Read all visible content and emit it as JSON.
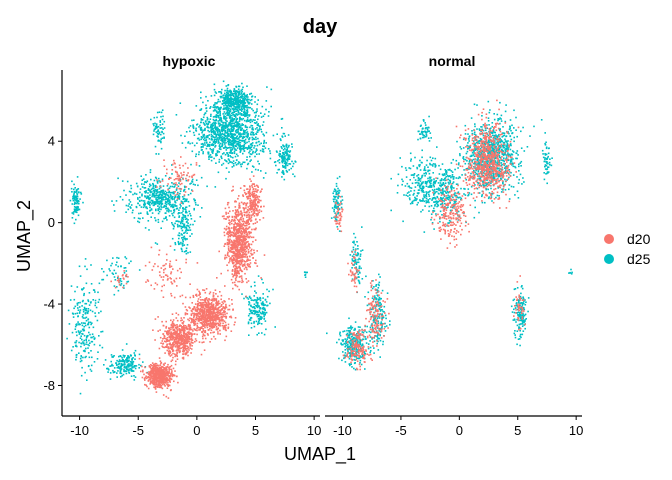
{
  "chart_data": {
    "type": "scatter",
    "title": "day",
    "xlabel": "UMAP_1",
    "ylabel": "UMAP_2",
    "xlim": [
      -11.5,
      10.5
    ],
    "ylim": [
      -9.5,
      7.5
    ],
    "x_ticks": [
      -10,
      -5,
      0,
      5,
      10
    ],
    "y_ticks": [
      -8,
      -4,
      0,
      4
    ],
    "x_tick_labels": [
      "-10",
      "-5",
      "0",
      "5",
      "10"
    ],
    "y_tick_labels": [
      "-8",
      "-4",
      "0",
      "4"
    ],
    "legend_position": "right",
    "legend": [
      {
        "label": "d20",
        "color": "#F8766D"
      },
      {
        "label": "d25",
        "color": "#00BFC4"
      }
    ],
    "panels": [
      {
        "label": "hypoxic",
        "clusters": [
          {
            "series": "d25",
            "x": 2.8,
            "y": 4.4,
            "sx": 2.6,
            "sy": 1.4,
            "n": 1100
          },
          {
            "series": "d25",
            "x": 3.2,
            "y": 6.0,
            "sx": 1.3,
            "sy": 0.6,
            "n": 400
          },
          {
            "series": "d25",
            "x": -3.0,
            "y": 1.2,
            "sx": 2.5,
            "sy": 1.0,
            "n": 500
          },
          {
            "series": "d25",
            "x": -1.2,
            "y": -0.3,
            "sx": 0.7,
            "sy": 1.1,
            "n": 120
          },
          {
            "series": "d25",
            "x": -3.2,
            "y": 4.5,
            "sx": 0.6,
            "sy": 0.8,
            "n": 60
          },
          {
            "series": "d25",
            "x": -10.3,
            "y": 1.0,
            "sx": 0.35,
            "sy": 0.8,
            "n": 90
          },
          {
            "series": "d25",
            "x": -9.5,
            "y": -5.0,
            "sx": 1.2,
            "sy": 2.0,
            "n": 220
          },
          {
            "series": "d25",
            "x": -6.8,
            "y": -2.5,
            "sx": 1.2,
            "sy": 0.9,
            "n": 50
          },
          {
            "series": "d25",
            "x": -6.2,
            "y": -7.0,
            "sx": 1.3,
            "sy": 0.5,
            "n": 180
          },
          {
            "series": "d25",
            "x": 5.2,
            "y": -4.2,
            "sx": 0.8,
            "sy": 0.9,
            "n": 170
          },
          {
            "series": "d25",
            "x": 7.5,
            "y": 3.2,
            "sx": 0.6,
            "sy": 0.9,
            "n": 140
          },
          {
            "series": "d25",
            "x": 9.3,
            "y": -2.5,
            "sx": 0.15,
            "sy": 0.15,
            "n": 8
          },
          {
            "series": "d20",
            "x": 3.6,
            "y": -1.0,
            "sx": 1.0,
            "sy": 1.7,
            "n": 800
          },
          {
            "series": "d20",
            "x": 1.0,
            "y": -4.5,
            "sx": 1.6,
            "sy": 0.9,
            "n": 700
          },
          {
            "series": "d20",
            "x": -1.6,
            "y": -5.7,
            "sx": 1.3,
            "sy": 0.8,
            "n": 500
          },
          {
            "series": "d20",
            "x": -3.2,
            "y": -7.5,
            "sx": 1.0,
            "sy": 0.55,
            "n": 550
          },
          {
            "series": "d20",
            "x": 4.8,
            "y": 1.0,
            "sx": 0.7,
            "sy": 0.9,
            "n": 200
          },
          {
            "series": "d20",
            "x": -1.5,
            "y": 2.2,
            "sx": 1.6,
            "sy": 0.9,
            "n": 80
          },
          {
            "series": "d20",
            "x": -2.5,
            "y": -2.5,
            "sx": 1.5,
            "sy": 1.2,
            "n": 70
          },
          {
            "series": "d20",
            "x": -6.5,
            "y": -2.8,
            "sx": 0.6,
            "sy": 0.5,
            "n": 20
          }
        ]
      },
      {
        "label": "normal",
        "clusters": [
          {
            "series": "d25",
            "x": 2.6,
            "y": 3.2,
            "sx": 2.1,
            "sy": 1.6,
            "n": 900
          },
          {
            "series": "d25",
            "x": -1.5,
            "y": 1.5,
            "sx": 1.5,
            "sy": 1.3,
            "n": 300
          },
          {
            "series": "d25",
            "x": -3.5,
            "y": 2.0,
            "sx": 1.5,
            "sy": 1.0,
            "n": 160
          },
          {
            "series": "d25",
            "x": -3.0,
            "y": 4.5,
            "sx": 0.5,
            "sy": 0.6,
            "n": 50
          },
          {
            "series": "d25",
            "x": 7.5,
            "y": 3.0,
            "sx": 0.3,
            "sy": 0.8,
            "n": 50
          },
          {
            "series": "d25",
            "x": -10.5,
            "y": 1.0,
            "sx": 0.35,
            "sy": 0.9,
            "n": 80
          },
          {
            "series": "d25",
            "x": -8.8,
            "y": -2.0,
            "sx": 0.5,
            "sy": 1.2,
            "n": 80
          },
          {
            "series": "d25",
            "x": -7.0,
            "y": -4.5,
            "sx": 0.7,
            "sy": 1.4,
            "n": 180
          },
          {
            "series": "d25",
            "x": -9.0,
            "y": -6.0,
            "sx": 1.0,
            "sy": 0.9,
            "n": 260
          },
          {
            "series": "d25",
            "x": 5.2,
            "y": -4.5,
            "sx": 0.5,
            "sy": 1.0,
            "n": 140
          },
          {
            "series": "d25",
            "x": 9.5,
            "y": -2.5,
            "sx": 0.15,
            "sy": 0.15,
            "n": 6
          },
          {
            "series": "d20",
            "x": 2.4,
            "y": 3.0,
            "sx": 1.7,
            "sy": 1.6,
            "n": 650
          },
          {
            "series": "d20",
            "x": -0.8,
            "y": 0.5,
            "sx": 1.2,
            "sy": 1.3,
            "n": 200
          },
          {
            "series": "d20",
            "x": -7.2,
            "y": -4.5,
            "sx": 0.8,
            "sy": 1.3,
            "n": 130
          },
          {
            "series": "d20",
            "x": -8.8,
            "y": -6.2,
            "sx": 0.9,
            "sy": 0.8,
            "n": 140
          },
          {
            "series": "d20",
            "x": -10.3,
            "y": 0.5,
            "sx": 0.3,
            "sy": 0.8,
            "n": 40
          },
          {
            "series": "d20",
            "x": -9.0,
            "y": -2.5,
            "sx": 0.4,
            "sy": 1.0,
            "n": 40
          },
          {
            "series": "d20",
            "x": 5.2,
            "y": -4.3,
            "sx": 0.4,
            "sy": 0.8,
            "n": 40
          }
        ]
      }
    ]
  }
}
